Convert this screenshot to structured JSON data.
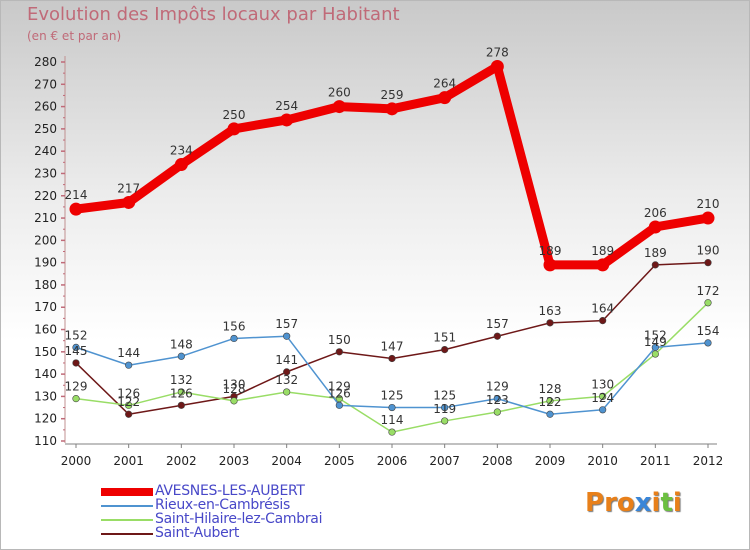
{
  "title": "Evolution des Impôts locaux par Habitant",
  "subtitle": "(en € et par an)",
  "logo": {
    "text": "Proxiti",
    "colors": [
      "#e8801a",
      "#e8801a",
      "#e8801a",
      "#3a86d8",
      "#e8801a",
      "#6cc040",
      "#e8801a"
    ]
  },
  "chart_data": {
    "type": "line",
    "title": "Evolution des Impôts locaux par Habitant",
    "subtitle": "(en € et par an)",
    "xlabel": "",
    "ylabel": "",
    "x": [
      "2000",
      "2001",
      "2002",
      "2003",
      "2004",
      "2005",
      "2006",
      "2007",
      "2008",
      "2009",
      "2010",
      "2011",
      "2012"
    ],
    "ylim": [
      110,
      280
    ],
    "yticks": [
      110,
      120,
      130,
      140,
      150,
      160,
      170,
      180,
      190,
      200,
      210,
      220,
      230,
      240,
      250,
      260,
      270,
      280
    ],
    "grid": false,
    "legend": "bottom-left",
    "series": [
      {
        "name": "AVESNES-LES-AUBERT",
        "color": "#ee0000",
        "values": [
          214,
          217,
          234,
          250,
          254,
          260,
          259,
          264,
          278,
          189,
          189,
          206,
          210
        ],
        "labels": [
          "214",
          "217",
          "234",
          "250",
          "254",
          "260",
          "259",
          "264",
          "278",
          "189",
          "189",
          "206",
          "210"
        ]
      },
      {
        "name": "Rieux-en-Cambrésis",
        "color": "#4f93d0",
        "values": [
          152,
          144,
          148,
          156,
          157,
          126,
          125,
          125,
          129,
          122,
          124,
          152,
          154
        ],
        "labels": [
          "152",
          "144",
          "148",
          "156",
          "157",
          "126",
          "125",
          "125",
          "129",
          "122",
          "124",
          "152",
          "154"
        ]
      },
      {
        "name": "Saint-Hilaire-lez-Cambrai",
        "color": "#99dd66",
        "values": [
          129,
          126,
          132,
          128,
          132,
          129,
          114,
          119,
          123,
          128,
          130,
          149,
          172
        ],
        "labels": [
          "129",
          "126",
          "132",
          "128",
          "132",
          "129",
          "114",
          "119",
          "123",
          "128",
          "130",
          "149",
          "172"
        ]
      },
      {
        "name": "Saint-Aubert",
        "color": "#6e1818",
        "values": [
          145,
          122,
          126,
          130,
          141,
          150,
          147,
          151,
          157,
          163,
          164,
          189,
          190
        ],
        "labels": [
          "145",
          "122",
          "126",
          "130",
          "141",
          "150",
          "147",
          "151",
          "157",
          "163",
          "164",
          "189",
          "190"
        ]
      }
    ]
  }
}
